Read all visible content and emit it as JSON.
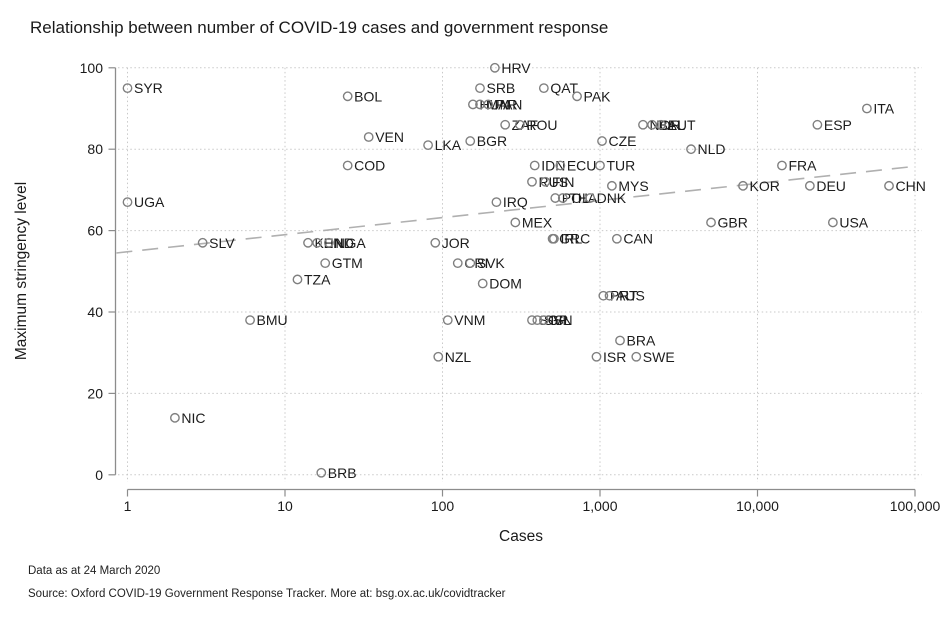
{
  "title": "Relationship between number of COVID-19 cases and government response",
  "footer": {
    "line1": "Data as at 24 March 2020",
    "line2": "Source: Oxford COVID-19 Government Response Tracker. More at: bsg.ox.ac.uk/covidtracker"
  },
  "colors": {
    "marker_stroke": "#7f7f7f",
    "grid": "#c9c9c9",
    "axis": "#8c8c8c",
    "trend": "#b0b0b0",
    "text": "#1c1c1c"
  },
  "chart_data": {
    "type": "scatter",
    "title": "Relationship between number of COVID-19 cases and government response",
    "xlabel": "Cases",
    "ylabel": "Maximum stringency level",
    "x_scale": "log",
    "xlim": [
      1,
      100000
    ],
    "ylim": [
      0,
      100
    ],
    "grid": "dotted",
    "legend": "none",
    "x_ticks": [
      {
        "value": 1,
        "label": "1"
      },
      {
        "value": 10,
        "label": "10"
      },
      {
        "value": 100,
        "label": "100"
      },
      {
        "value": 1000,
        "label": "1,000"
      },
      {
        "value": 10000,
        "label": "10,000"
      },
      {
        "value": 100000,
        "label": "100,000"
      }
    ],
    "y_ticks": [
      0,
      20,
      40,
      60,
      80,
      100
    ],
    "marker": {
      "shape": "hollow-circle",
      "color": "#7f7f7f"
    },
    "trend_line": {
      "style": "dashed",
      "color": "#b0b0b0",
      "start": {
        "cases": 0.85,
        "stringency": 54.5
      },
      "end": {
        "cases": 90000,
        "stringency": 75.6
      }
    },
    "points": [
      {
        "label": "SYR",
        "cases": 1,
        "stringency": 95
      },
      {
        "label": "UGA",
        "cases": 1,
        "stringency": 67
      },
      {
        "label": "NIC",
        "cases": 2,
        "stringency": 14
      },
      {
        "label": "SLV",
        "cases": 3,
        "stringency": 57
      },
      {
        "label": "BMU",
        "cases": 6,
        "stringency": 38
      },
      {
        "label": "TZA",
        "cases": 12,
        "stringency": 48
      },
      {
        "label": "KEN",
        "cases": 14,
        "stringency": 57
      },
      {
        "label": "HND",
        "cases": 16,
        "stringency": 57
      },
      {
        "label": "NGA",
        "cases": 19,
        "stringency": 57
      },
      {
        "label": "BRB",
        "cases": 17,
        "stringency": 0.5
      },
      {
        "label": "GTM",
        "cases": 18,
        "stringency": 52
      },
      {
        "label": "COD",
        "cases": 25,
        "stringency": 76
      },
      {
        "label": "BOL",
        "cases": 25,
        "stringency": 93
      },
      {
        "label": "VEN",
        "cases": 34,
        "stringency": 83
      },
      {
        "label": "LKA",
        "cases": 81,
        "stringency": 81
      },
      {
        "label": "JOR",
        "cases": 90,
        "stringency": 57
      },
      {
        "label": "NZL",
        "cases": 94,
        "stringency": 29
      },
      {
        "label": "VNM",
        "cases": 108,
        "stringency": 38
      },
      {
        "label": "CRI",
        "cases": 125,
        "stringency": 52
      },
      {
        "label": "SVK",
        "cases": 150,
        "stringency": 52
      },
      {
        "label": "BGR",
        "cases": 150,
        "stringency": 82
      },
      {
        "label": "HUN",
        "cases": 156,
        "stringency": 91
      },
      {
        "label": "MAR",
        "cases": 173,
        "stringency": 91
      },
      {
        "label": "PAN",
        "cases": 195,
        "stringency": 91
      },
      {
        "label": "SRB",
        "cases": 173,
        "stringency": 95
      },
      {
        "label": "DOM",
        "cases": 180,
        "stringency": 47
      },
      {
        "label": "HRV",
        "cases": 215,
        "stringency": 100
      },
      {
        "label": "IRQ",
        "cases": 220,
        "stringency": 67
      },
      {
        "label": "ZAF",
        "cases": 250,
        "stringency": 86
      },
      {
        "label": "ROU",
        "cases": 310,
        "stringency": 86
      },
      {
        "label": "MEX",
        "cases": 290,
        "stringency": 62
      },
      {
        "label": "RUS",
        "cases": 370,
        "stringency": 72
      },
      {
        "label": "FIN",
        "cases": 450,
        "stringency": 72
      },
      {
        "label": "IDN",
        "cases": 385,
        "stringency": 76
      },
      {
        "label": "ECU",
        "cases": 560,
        "stringency": 76
      },
      {
        "label": "TUR",
        "cases": 1000,
        "stringency": 76
      },
      {
        "label": "QAT",
        "cases": 440,
        "stringency": 95
      },
      {
        "label": "SGP",
        "cases": 370,
        "stringency": 38
      },
      {
        "label": "SVN",
        "cases": 400,
        "stringency": 38
      },
      {
        "label": "ISL",
        "cases": 440,
        "stringency": 38
      },
      {
        "label": "GRC",
        "cases": 500,
        "stringency": 58
      },
      {
        "label": "IRL",
        "cases": 510,
        "stringency": 58
      },
      {
        "label": "POL",
        "cases": 520,
        "stringency": 68
      },
      {
        "label": "THA",
        "cases": 580,
        "stringency": 68
      },
      {
        "label": "DNK",
        "cases": 865,
        "stringency": 68
      },
      {
        "label": "PAK",
        "cases": 715,
        "stringency": 93
      },
      {
        "label": "ISR",
        "cases": 950,
        "stringency": 29
      },
      {
        "label": "CZE",
        "cases": 1030,
        "stringency": 82
      },
      {
        "label": "MYS",
        "cases": 1190,
        "stringency": 71
      },
      {
        "label": "CAN",
        "cases": 1280,
        "stringency": 58
      },
      {
        "label": "BRA",
        "cases": 1340,
        "stringency": 33
      },
      {
        "label": "PRT",
        "cases": 1050,
        "stringency": 44
      },
      {
        "label": "AUS",
        "cases": 1150,
        "stringency": 44
      },
      {
        "label": "SWE",
        "cases": 1700,
        "stringency": 29
      },
      {
        "label": "NOR",
        "cases": 1875,
        "stringency": 86
      },
      {
        "label": "BEL",
        "cases": 2140,
        "stringency": 86
      },
      {
        "label": "AUT",
        "cases": 2440,
        "stringency": 86
      },
      {
        "label": "NLD",
        "cases": 3785,
        "stringency": 80
      },
      {
        "label": "GBR",
        "cases": 5070,
        "stringency": 62
      },
      {
        "label": "KOR",
        "cases": 8090,
        "stringency": 71
      },
      {
        "label": "FRA",
        "cases": 14300,
        "stringency": 76
      },
      {
        "label": "DEU",
        "cases": 21500,
        "stringency": 71
      },
      {
        "label": "ESP",
        "cases": 24000,
        "stringency": 86
      },
      {
        "label": "USA",
        "cases": 30100,
        "stringency": 62
      },
      {
        "label": "ITA",
        "cases": 49500,
        "stringency": 90
      },
      {
        "label": "CHN",
        "cases": 68400,
        "stringency": 71
      }
    ]
  }
}
